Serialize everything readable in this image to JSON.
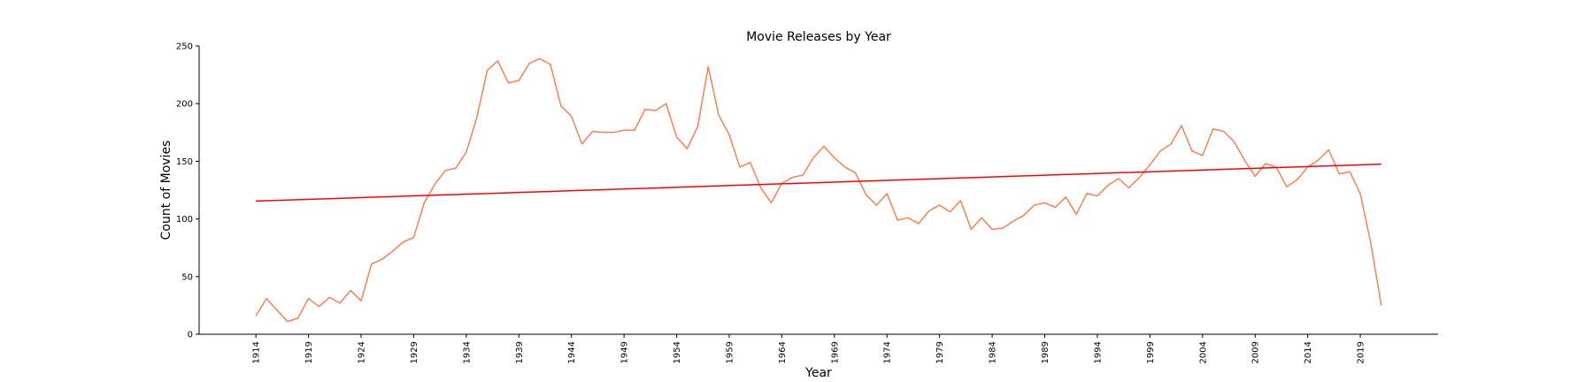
{
  "chart_data": {
    "type": "line",
    "title": "Movie Releases by Year",
    "xlabel": "Year",
    "ylabel": "Count of Movies",
    "xlim": [
      1908.6,
      2026.4
    ],
    "ylim": [
      0,
      250
    ],
    "xticks": [
      1914,
      1919,
      1924,
      1929,
      1934,
      1939,
      1944,
      1949,
      1954,
      1959,
      1964,
      1969,
      1974,
      1979,
      1984,
      1989,
      1994,
      1999,
      2004,
      2009,
      2014,
      2019
    ],
    "yticks": [
      0,
      50,
      100,
      150,
      200,
      250
    ],
    "grid": false,
    "legend": "none",
    "series": [
      {
        "role": "data",
        "color": "#ff7f50",
        "x": [
          1914,
          1915,
          1916,
          1917,
          1918,
          1919,
          1920,
          1921,
          1922,
          1923,
          1924,
          1925,
          1926,
          1927,
          1928,
          1929,
          1930,
          1931,
          1932,
          1933,
          1934,
          1935,
          1936,
          1937,
          1938,
          1939,
          1940,
          1941,
          1942,
          1943,
          1944,
          1945,
          1946,
          1947,
          1948,
          1949,
          1950,
          1951,
          1952,
          1953,
          1954,
          1955,
          1956,
          1957,
          1958,
          1959,
          1960,
          1961,
          1962,
          1963,
          1964,
          1965,
          1966,
          1967,
          1968,
          1969,
          1970,
          1971,
          1972,
          1973,
          1974,
          1975,
          1976,
          1977,
          1978,
          1979,
          1980,
          1981,
          1982,
          1983,
          1984,
          1985,
          1986,
          1987,
          1988,
          1989,
          1990,
          1991,
          1992,
          1993,
          1994,
          1995,
          1996,
          1997,
          1998,
          1999,
          2000,
          2001,
          2002,
          2003,
          2004,
          2005,
          2006,
          2007,
          2008,
          2009,
          2010,
          2011,
          2012,
          2013,
          2014,
          2015,
          2016,
          2017,
          2018,
          2019,
          2020,
          2021
        ],
        "values": [
          16,
          31,
          21,
          11,
          14,
          31,
          24,
          32,
          27,
          38,
          29,
          61,
          65,
          72,
          80,
          84,
          114,
          130,
          142,
          144,
          158,
          188,
          229,
          237,
          218,
          220,
          235,
          239,
          234,
          198,
          189,
          165,
          176,
          175,
          175,
          177,
          177,
          195,
          194,
          200,
          171,
          161,
          180,
          232,
          190,
          173,
          145,
          149,
          127,
          114,
          131,
          136,
          138,
          153,
          163,
          153,
          145,
          140,
          121,
          112,
          122,
          99,
          101,
          96,
          107,
          112,
          106,
          116,
          91,
          101,
          91,
          92,
          98,
          103,
          112,
          114,
          110,
          119,
          104,
          122,
          120,
          129,
          135,
          127,
          136,
          147,
          159,
          165,
          181,
          159,
          155,
          178,
          176,
          167,
          151,
          137,
          148,
          145,
          128,
          134,
          145,
          151,
          160,
          139,
          141,
          122,
          79,
          25
        ]
      },
      {
        "role": "trend",
        "color": "#ff0000",
        "x": [
          1914,
          2021
        ],
        "values": [
          115.5,
          147.5
        ]
      }
    ]
  }
}
